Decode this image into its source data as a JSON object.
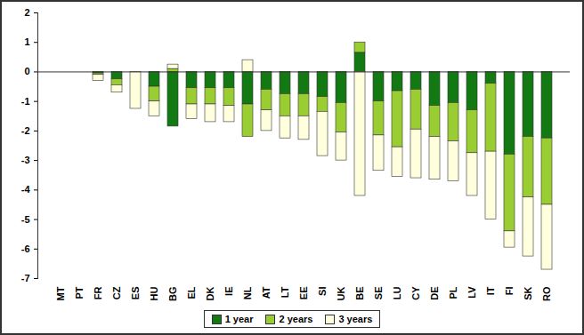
{
  "chart_data": {
    "type": "bar",
    "stacked": true,
    "grid": false,
    "legend": "bottom",
    "categories": [
      "MT",
      "PT",
      "FR",
      "CZ",
      "ES",
      "HU",
      "BG",
      "EL",
      "DK",
      "IE",
      "NL",
      "AT",
      "LT",
      "EE",
      "SI",
      "UK",
      "BE",
      "SE",
      "LU",
      "CY",
      "DE",
      "PL",
      "LV",
      "IT",
      "FI",
      "SK",
      "RO"
    ],
    "ylim": [
      -7,
      2
    ],
    "yticks": [
      -7,
      -6,
      -5,
      -4,
      -3,
      -2,
      -1,
      0,
      1,
      2
    ],
    "series": [
      {
        "name": "1 year",
        "color": "#137a13",
        "values": [
          0,
          0,
          -0.05,
          -0.25,
          0,
          -0.5,
          -1.85,
          -0.55,
          -0.55,
          -0.55,
          -1.1,
          -0.6,
          -0.75,
          -0.75,
          -0.85,
          -1.05,
          0.65,
          -1.0,
          -0.65,
          -0.6,
          -1.15,
          -1.05,
          -1.3,
          -0.4,
          -2.8,
          -2.2,
          -2.25
        ]
      },
      {
        "name": "2 years",
        "color": "#9acd32",
        "values": [
          0,
          0,
          -0.05,
          -0.2,
          0,
          -0.5,
          0.1,
          -0.55,
          -0.55,
          -0.6,
          -1.1,
          -0.7,
          -0.75,
          -0.75,
          -0.5,
          -1.0,
          0.35,
          -1.15,
          -1.9,
          -1.35,
          -1.05,
          -1.3,
          -1.45,
          -2.3,
          -2.6,
          -2.05,
          -2.25
        ]
      },
      {
        "name": "3 years",
        "color": "#ffffdd",
        "values": [
          0,
          0,
          -0.2,
          -0.25,
          -1.25,
          -0.5,
          0.15,
          -0.5,
          -0.6,
          -0.55,
          0.4,
          -0.7,
          -0.75,
          -0.8,
          -1.5,
          -0.95,
          -4.2,
          -1.2,
          -1.0,
          -1.65,
          -1.45,
          -1.35,
          -1.45,
          -2.3,
          -0.55,
          -2.0,
          -2.2
        ]
      }
    ]
  }
}
